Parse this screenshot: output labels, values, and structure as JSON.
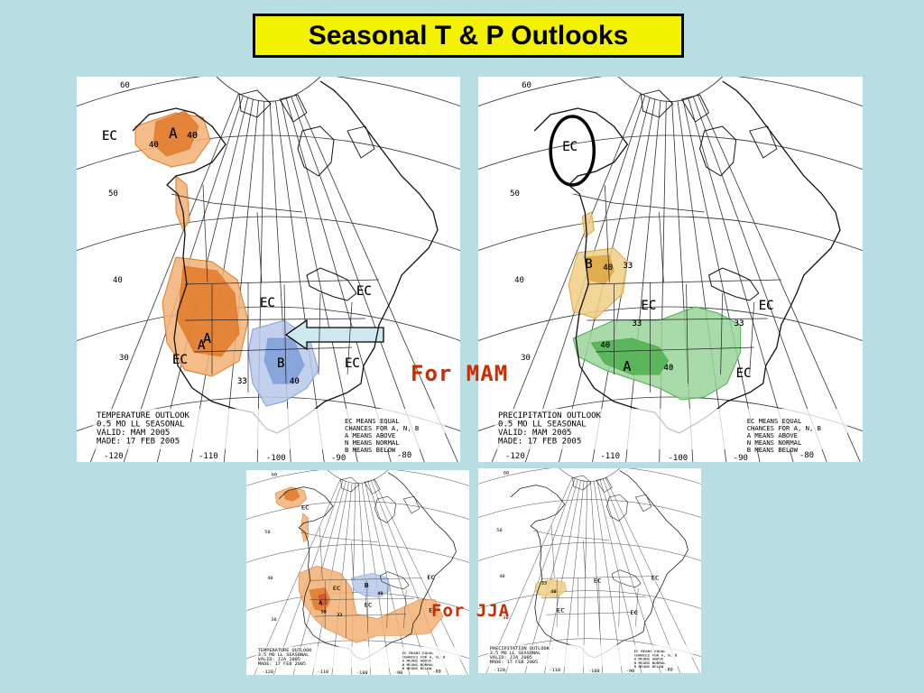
{
  "title": "Seasonal T & P Outlooks",
  "captions": {
    "mam": "For MAM",
    "jja": "For JJA"
  },
  "colors": {
    "above": "#e07a2a",
    "above_light": "#f2b073",
    "below": "#7f9fd8",
    "below_light": "#b7c8ea",
    "wet": "#4fb04f",
    "wet_light": "#9ad49a",
    "dry": "#dfa63f",
    "dry_light": "#f0cf86",
    "background": "#b8dde3",
    "title_box": "#f2f200"
  },
  "maps": [
    {
      "id": "temp-mam",
      "kind": "temperature",
      "legend": [
        "TEMPERATURE OUTLOOK",
        "0.5 MO LL SEASONAL",
        "VALID:  MAM 2005",
        "MADE:  17 FEB 2005"
      ],
      "key": [
        "EC MEANS EQUAL",
        "CHANCES FOR A, N, B",
        "A MEANS ABOVE",
        "N MEANS NORMAL",
        "B MEANS BELOW"
      ],
      "lat_labels": [
        "60",
        "50",
        "40",
        "30"
      ],
      "lon_labels": [
        "-120",
        "-110",
        "-100",
        "-90",
        "-80"
      ],
      "region_labels": [
        "EC",
        "A",
        "40",
        "40",
        "A",
        "EC",
        "EC",
        "A",
        "EC",
        "B",
        "40",
        "33",
        "EC"
      ]
    },
    {
      "id": "precip-mam",
      "kind": "precipitation",
      "legend": [
        "PRECIPITATION OUTLOOK",
        "0.5 MO LL SEASONAL",
        "VALID:  MAM 2005",
        "MADE:  17 FEB 2005"
      ],
      "key": [
        "EC MEANS EQUAL",
        "CHANCES FOR A, N, B",
        "A MEANS ABOVE",
        "N MEANS NORMAL",
        "B MEANS BELOW"
      ],
      "lat_labels": [
        "60",
        "50",
        "40",
        "30"
      ],
      "lon_labels": [
        "-120",
        "-110",
        "-100",
        "-90",
        "-80"
      ],
      "region_labels": [
        "EC",
        "B",
        "40",
        "33",
        "EC",
        "33",
        "EC",
        "33",
        "40",
        "A",
        "40",
        "EC"
      ]
    },
    {
      "id": "temp-jja",
      "kind": "temperature",
      "legend": [
        "TEMPERATURE OUTLOOK",
        "3.5 MO LL SEASONAL",
        "VALID:  JJA 2005",
        "MADE:  17 FEB 2005"
      ],
      "key": [
        "EC MEANS EQUAL",
        "CHANCES FOR A, N, B",
        "A MEANS ABOVE",
        "N MEANS NORMAL",
        "B MEANS BELOW"
      ],
      "lat_labels": [
        "60",
        "50",
        "40",
        "30"
      ],
      "lon_labels": [
        "-120",
        "-110",
        "-100",
        "-90",
        "-80"
      ],
      "region_labels": [
        "EC",
        "EC",
        "B",
        "40",
        "EC",
        "A",
        "50",
        "33",
        "EC",
        "EC"
      ]
    },
    {
      "id": "precip-jja",
      "kind": "precipitation",
      "legend": [
        "PRECIPITATION OUTLOOK",
        "3.5 MO LL SEASONAL",
        "VALID:  JJA 2005",
        "MADE:  17 FEB 2005"
      ],
      "key": [
        "EC MEANS EQUAL",
        "CHANCES FOR A, N, B",
        "A MEANS ABOVE",
        "N MEANS NORMAL",
        "B MEANS BELOW"
      ],
      "lat_labels": [
        "60",
        "50",
        "40",
        "30"
      ],
      "lon_labels": [
        "-120",
        "-110",
        "-100",
        "-90",
        "-80"
      ],
      "region_labels": [
        "33",
        "40",
        "EC",
        "EC",
        "EC",
        "EC"
      ]
    }
  ]
}
